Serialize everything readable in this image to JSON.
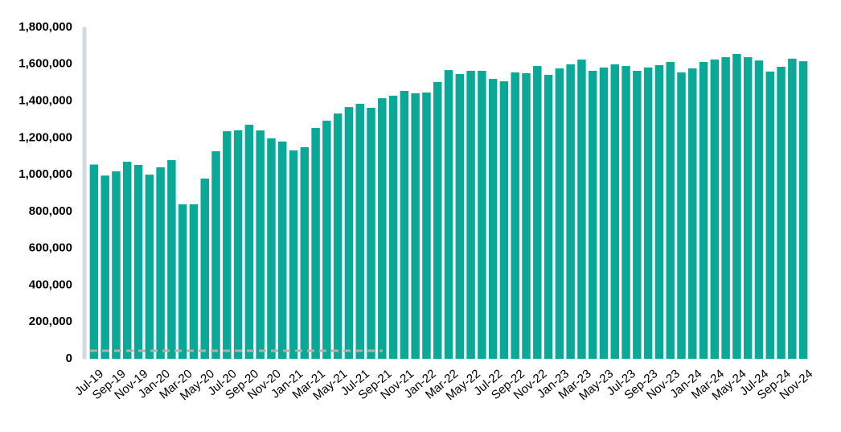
{
  "chart_data": {
    "type": "bar",
    "color": "#0aa896",
    "categories": [
      "Jul-19",
      null,
      "Sep-19",
      null,
      "Nov-19",
      null,
      "Jan-20",
      null,
      "Mar-20",
      null,
      "May-20",
      null,
      "Jul-20",
      null,
      "Sep-20",
      null,
      "Nov-20",
      null,
      "Jan-21",
      null,
      "Mar-21",
      null,
      "May-21",
      null,
      "Jul-21",
      null,
      "Sep-21",
      null,
      "Nov-21",
      null,
      "Jan-22",
      null,
      "Mar-22",
      null,
      "May-22",
      null,
      "Jul-22",
      null,
      "Sep-22",
      null,
      "Nov-22",
      null,
      "Jan-23",
      null,
      "Mar-23",
      null,
      "May-23",
      null,
      "Jul-23",
      null,
      "Sep-23",
      null,
      "Nov-23",
      null,
      "Jan-24",
      null,
      "Mar-24",
      null,
      "May-24",
      null,
      "Jul-24",
      null,
      "Sep-24",
      null,
      "Nov-24"
    ],
    "values": [
      1055000,
      995000,
      1018000,
      1070000,
      1053000,
      1000000,
      1040000,
      1079000,
      839000,
      839000,
      979000,
      1127000,
      1236000,
      1241000,
      1271000,
      1240000,
      1197000,
      1180000,
      1132000,
      1149000,
      1254000,
      1293000,
      1332000,
      1367000,
      1385000,
      1363000,
      1415000,
      1429000,
      1455000,
      1442000,
      1446000,
      1503000,
      1568000,
      1547000,
      1564000,
      1564000,
      1520000,
      1507000,
      1555000,
      1551000,
      1590000,
      1542000,
      1577000,
      1599000,
      1625000,
      1564000,
      1582000,
      1599000,
      1590000,
      1564000,
      1582000,
      1595000,
      1612000,
      1555000,
      1577000,
      1612000,
      1625000,
      1638000,
      1656000,
      1638000,
      1620000,
      1560000,
      1586000,
      1630000,
      1616000
    ],
    "ylim": [
      0,
      1800000
    ],
    "yticks": [
      0,
      {
        "value": 200000,
        "label": "200,000"
      },
      {
        "value": 400000,
        "label": "400,000"
      },
      {
        "value": 600000,
        "label": "600,000"
      },
      {
        "value": 800000,
        "label": "800,000"
      },
      {
        "value": 1000000,
        "label": "1,000,000"
      },
      {
        "value": 1200000,
        "label": "1,200,000"
      },
      {
        "value": 1400000,
        "label": "1,400,000"
      },
      {
        "value": 1600000,
        "label": "1,600,000"
      },
      {
        "value": 1800000,
        "label": "1,800,000"
      }
    ],
    "grid": false
  }
}
